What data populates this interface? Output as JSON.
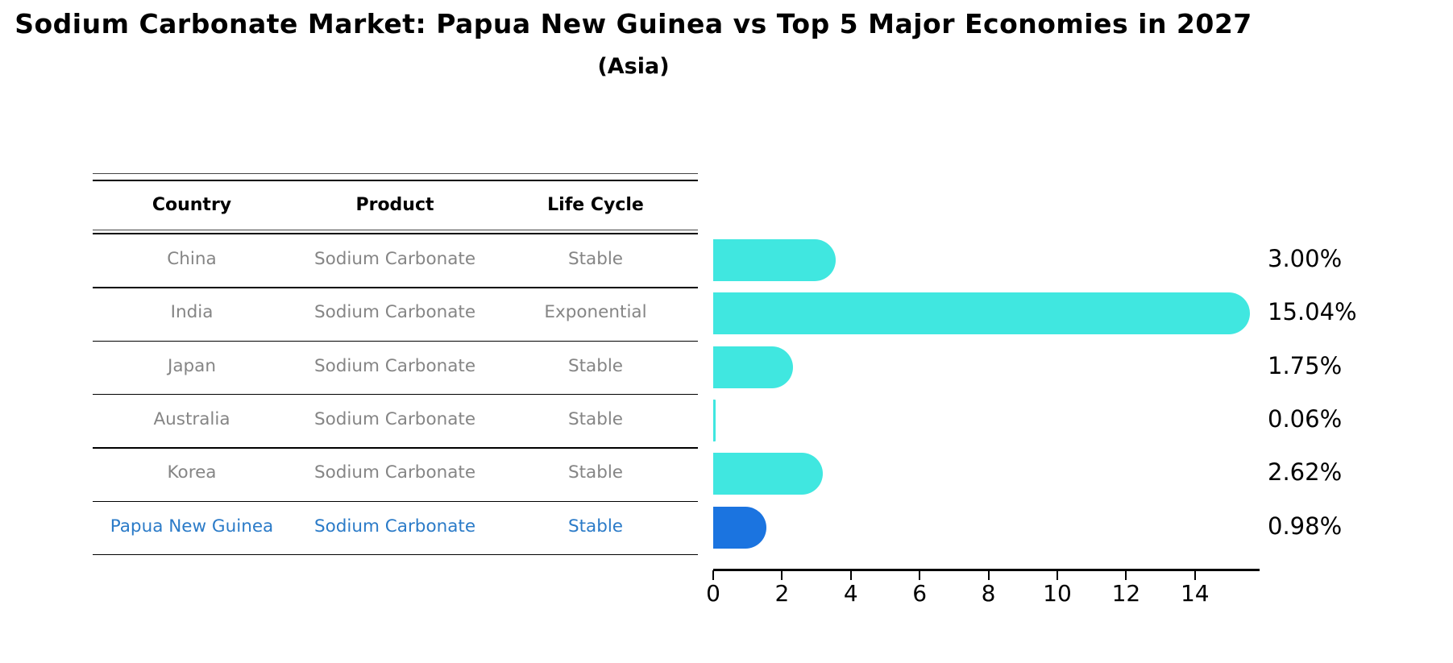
{
  "title": "Sodium Carbonate Market: Papua New Guinea vs Top 5 Major Economies in 2027",
  "subtitle": "(Asia)",
  "table": {
    "headers": [
      "Country",
      "Product",
      "Life Cycle"
    ],
    "rows": [
      {
        "country": "China",
        "product": "Sodium Carbonate",
        "life_cycle": "Stable",
        "highlight": false
      },
      {
        "country": "India",
        "product": "Sodium Carbonate",
        "life_cycle": "Exponential",
        "highlight": false
      },
      {
        "country": "Japan",
        "product": "Sodium Carbonate",
        "life_cycle": "Stable",
        "highlight": false
      },
      {
        "country": "Australia",
        "product": "Sodium Carbonate",
        "life_cycle": "Stable",
        "highlight": false
      },
      {
        "country": "Korea",
        "product": "Sodium Carbonate",
        "life_cycle": "Stable",
        "highlight": false
      },
      {
        "country": "Papua New Guinea",
        "product": "Sodium Carbonate",
        "life_cycle": "Stable",
        "highlight": true
      }
    ]
  },
  "chart_data": {
    "type": "bar",
    "orientation": "horizontal",
    "title": "Sodium Carbonate Market: Papua New Guinea vs Top 5 Major Economies in 2027 (Asia)",
    "categories": [
      "China",
      "India",
      "Japan",
      "Australia",
      "Korea",
      "Papua New Guinea"
    ],
    "values": [
      3.0,
      15.04,
      1.75,
      0.06,
      2.62,
      0.98
    ],
    "value_labels": [
      "3.00%",
      "15.04%",
      "1.75%",
      "0.06%",
      "2.62%",
      "0.98%"
    ],
    "x_tick_labels": [
      "0",
      "2",
      "4",
      "6",
      "8",
      "10",
      "12",
      "14"
    ],
    "x_ticks": [
      0,
      2,
      4,
      6,
      8,
      10,
      12,
      14
    ],
    "xlim": [
      0,
      15.85
    ],
    "grid": false,
    "legend": "none",
    "bar_color": "#40E7E0",
    "highlight_color": "#1B74E0",
    "highlight_index": 5,
    "highlight_text_color": "#2B7BC8"
  }
}
